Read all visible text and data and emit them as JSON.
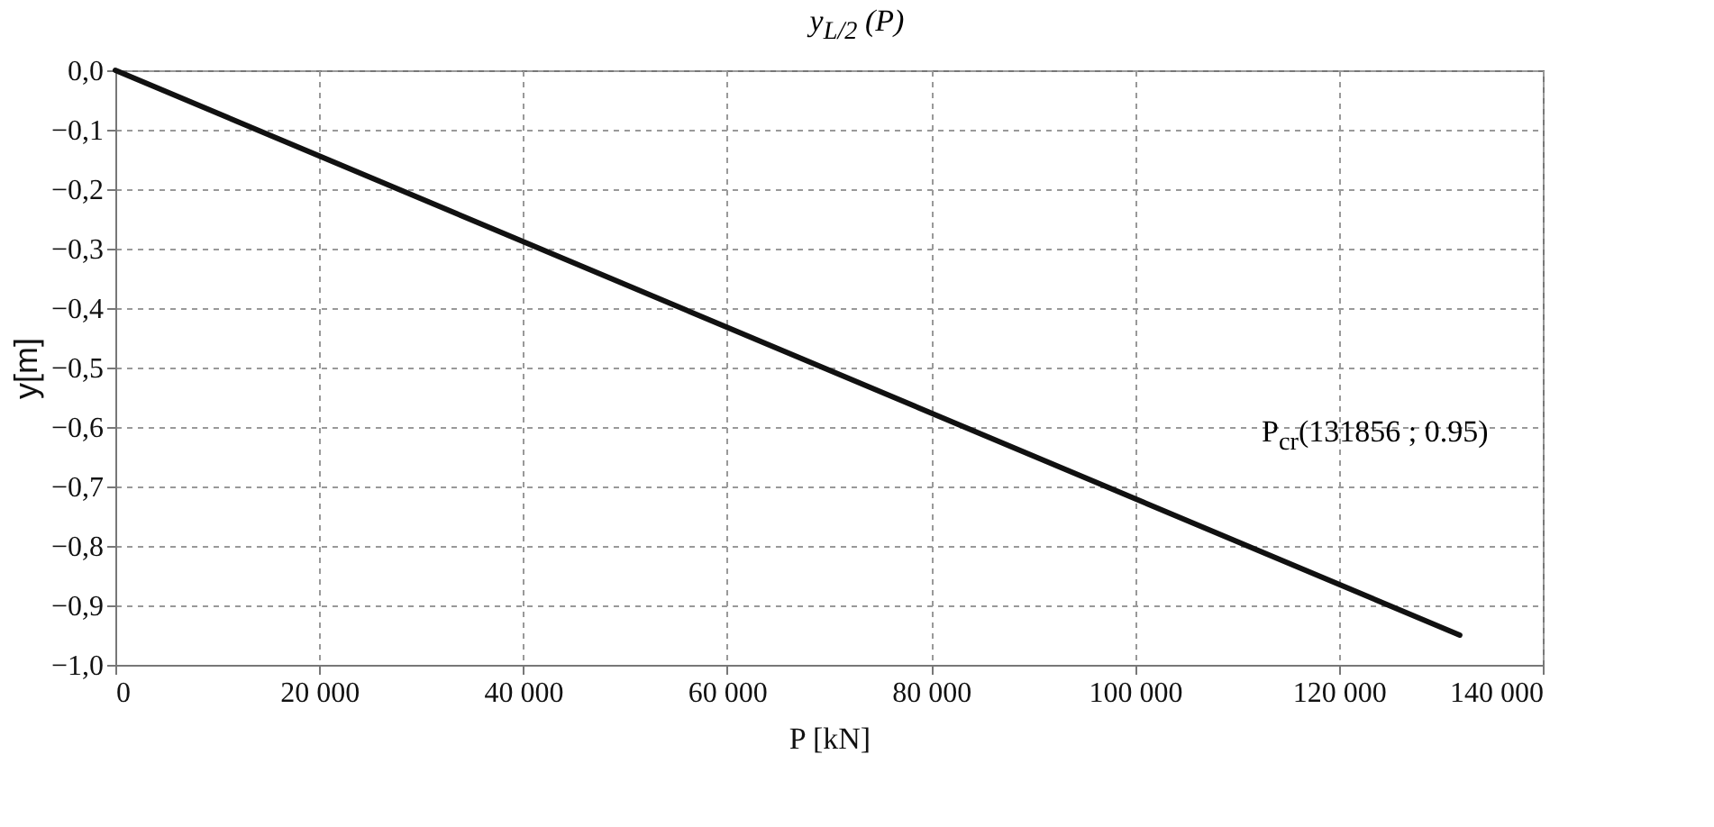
{
  "chart_data": {
    "type": "line",
    "title": "y$_{L/2}$ (P)",
    "xlabel": "P [kN]",
    "ylabel": "y[m]",
    "x": [
      0,
      131856
    ],
    "series": [
      {
        "color": "#111111",
        "values": [
          0,
          -0.95
        ]
      }
    ],
    "xlim": [
      0,
      140000
    ],
    "xticks": [
      0,
      {
        "value": 20000,
        "label": "20 000"
      },
      {
        "value": 40000,
        "label": "40 000"
      },
      {
        "value": 60000,
        "label": "60 000"
      },
      {
        "value": 80000,
        "label": "80 000"
      },
      {
        "value": 100000,
        "label": "100 000"
      },
      {
        "value": 120000,
        "label": "120 000"
      },
      {
        "value": 140000,
        "label": "140 000"
      }
    ],
    "ylim": [
      -1,
      0
    ],
    "yticks": [
      {
        "value": 0,
        "label": "0,0"
      },
      {
        "value": -0.1,
        "label": "−0,1"
      },
      {
        "value": -0.2,
        "label": "−0,2"
      },
      {
        "value": -0.3,
        "label": "−0,3"
      },
      {
        "value": -0.4,
        "label": "−0,4"
      },
      {
        "value": -0.5,
        "label": "−0,5"
      },
      {
        "value": -0.6,
        "label": "−0,6"
      },
      {
        "value": -0.7,
        "label": "−0,7"
      },
      {
        "value": -0.8,
        "label": "−0,8"
      },
      {
        "value": -0.9,
        "label": "−0,9"
      },
      {
        "value": -1,
        "label": "−1,0"
      }
    ],
    "grid": true,
    "line_style": "solid",
    "marker": "none",
    "legend": false,
    "annotations": [
      "P$_{cr}$(131856 ; 0.95)"
    ]
  }
}
